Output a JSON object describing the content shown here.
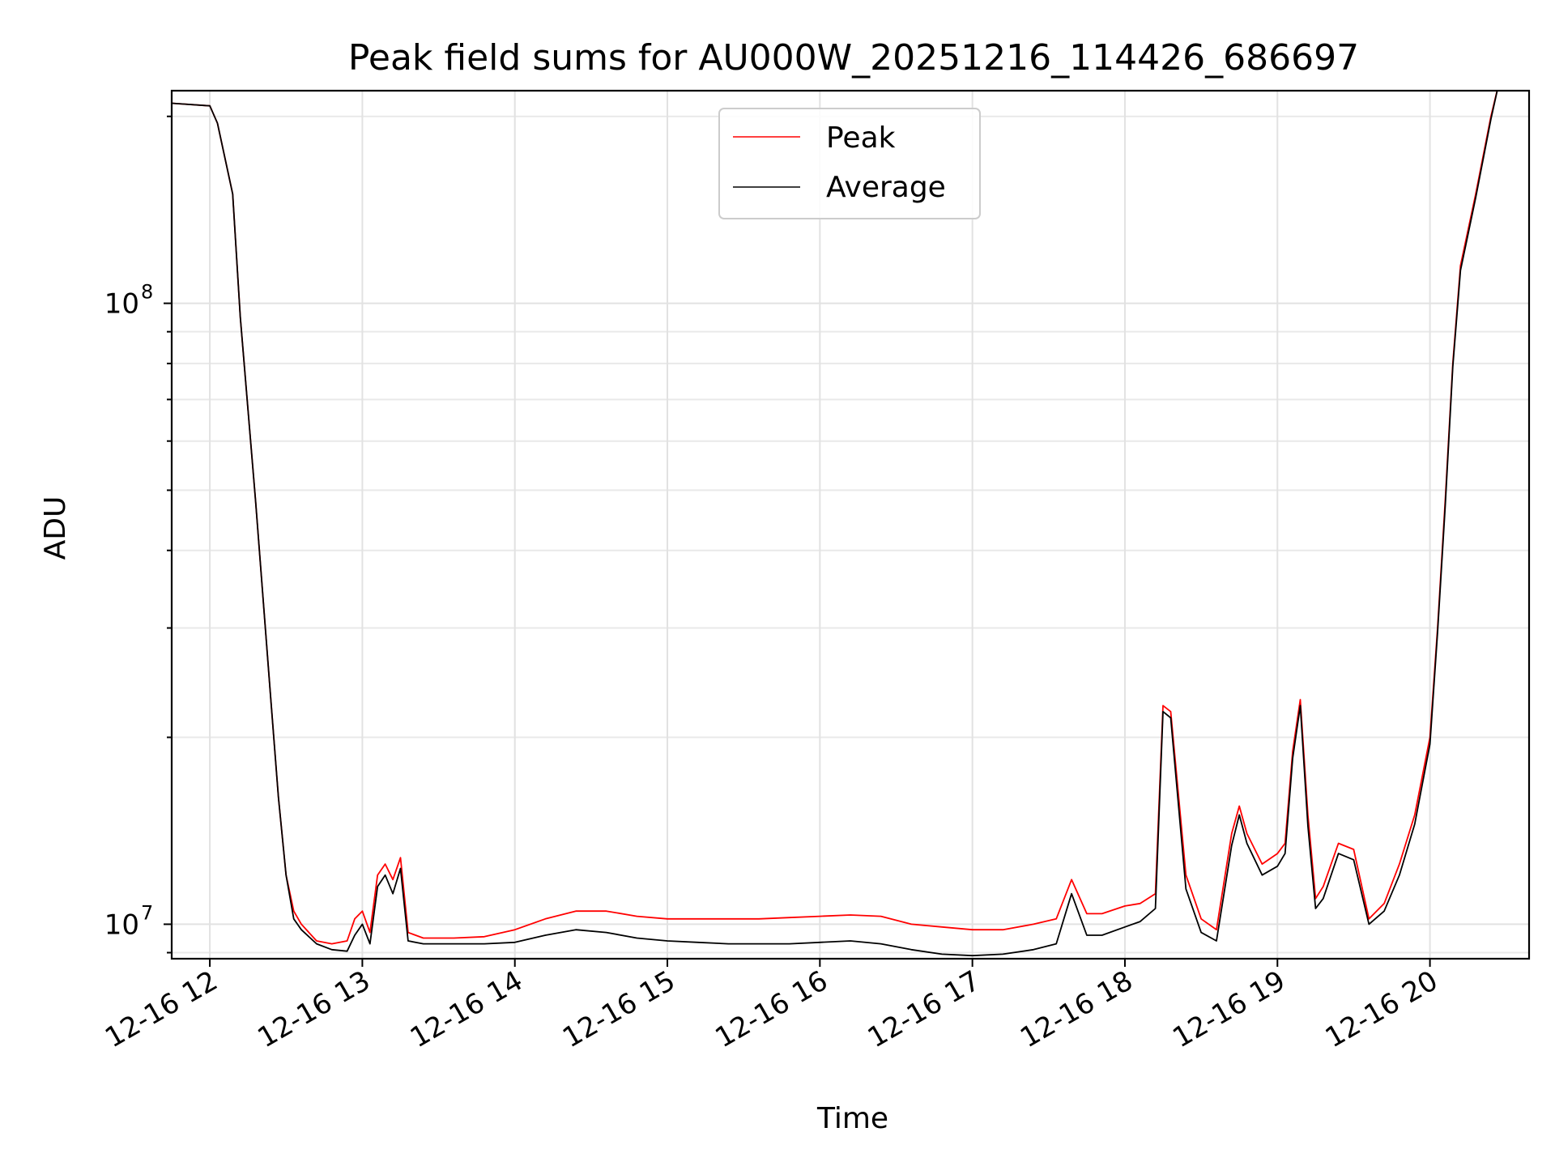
{
  "chart_data": {
    "type": "line",
    "title": "Peak field sums for AU000W_20251216_114426_686697",
    "xlabel": "Time",
    "ylabel": "ADU",
    "x_unit": "hours since 2025-12-16 00:00",
    "xlim": [
      11.75,
      20.65
    ],
    "yscale": "log",
    "ylim": [
      8800000,
      220000000
    ],
    "x_ticks": [
      {
        "value": 12,
        "label": "12-16 12"
      },
      {
        "value": 13,
        "label": "12-16 13"
      },
      {
        "value": 14,
        "label": "12-16 14"
      },
      {
        "value": 15,
        "label": "12-16 15"
      },
      {
        "value": 16,
        "label": "12-16 16"
      },
      {
        "value": 17,
        "label": "12-16 17"
      },
      {
        "value": 18,
        "label": "12-16 18"
      },
      {
        "value": 19,
        "label": "12-16 19"
      },
      {
        "value": 20,
        "label": "12-16 20"
      }
    ],
    "y_ticks": [
      {
        "value": 10000000,
        "base": "10",
        "exp": "7"
      },
      {
        "value": 100000000,
        "base": "10",
        "exp": "8"
      }
    ],
    "grid": true,
    "legend": {
      "placement": "upper-center",
      "entries": [
        "Peak",
        "Average"
      ]
    },
    "series": [
      {
        "name": "Peak",
        "color": "#ff0000",
        "x": [
          11.75,
          12.0,
          12.05,
          12.15,
          12.2,
          12.3,
          12.4,
          12.45,
          12.5,
          12.55,
          12.6,
          12.7,
          12.8,
          12.9,
          12.95,
          13.0,
          13.05,
          13.1,
          13.15,
          13.2,
          13.25,
          13.3,
          13.4,
          13.6,
          13.8,
          14.0,
          14.2,
          14.4,
          14.6,
          14.8,
          15.0,
          15.2,
          15.4,
          15.6,
          15.8,
          16.0,
          16.2,
          16.4,
          16.6,
          16.8,
          17.0,
          17.2,
          17.4,
          17.55,
          17.65,
          17.75,
          17.85,
          18.0,
          18.1,
          18.2,
          18.25,
          18.3,
          18.4,
          18.5,
          18.6,
          18.7,
          18.75,
          18.8,
          18.9,
          19.0,
          19.05,
          19.1,
          19.15,
          19.2,
          19.25,
          19.3,
          19.4,
          19.5,
          19.6,
          19.7,
          19.8,
          19.9,
          20.0,
          20.05,
          20.1,
          20.15,
          20.2,
          20.3,
          20.4,
          20.45
        ],
        "y": [
          210000000,
          208000000,
          195000000,
          150000000,
          95000000,
          48000000,
          23000000,
          16000000,
          12000000,
          10500000,
          10000000,
          9400000,
          9300000,
          9400000,
          10200000,
          10500000,
          9700000,
          12000000,
          12500000,
          11800000,
          12800000,
          9700000,
          9500000,
          9500000,
          9550000,
          9800000,
          10200000,
          10500000,
          10500000,
          10300000,
          10200000,
          10200000,
          10200000,
          10200000,
          10250000,
          10300000,
          10350000,
          10300000,
          10000000,
          9900000,
          9800000,
          9800000,
          10000000,
          10200000,
          11800000,
          10400000,
          10400000,
          10700000,
          10800000,
          11200000,
          22500000,
          22000000,
          12000000,
          10200000,
          9800000,
          14000000,
          15500000,
          14000000,
          12500000,
          13000000,
          13500000,
          19000000,
          23000000,
          15000000,
          11000000,
          11500000,
          13500000,
          13200000,
          10200000,
          10800000,
          12500000,
          15000000,
          20000000,
          30000000,
          48000000,
          80000000,
          115000000,
          150000000,
          200000000,
          225000000
        ]
      },
      {
        "name": "Average",
        "color": "#000000",
        "x": [
          11.75,
          12.0,
          12.05,
          12.15,
          12.2,
          12.3,
          12.4,
          12.45,
          12.5,
          12.55,
          12.6,
          12.7,
          12.8,
          12.9,
          12.95,
          13.0,
          13.05,
          13.1,
          13.15,
          13.2,
          13.25,
          13.3,
          13.4,
          13.6,
          13.8,
          14.0,
          14.2,
          14.4,
          14.6,
          14.8,
          15.0,
          15.2,
          15.4,
          15.6,
          15.8,
          16.0,
          16.2,
          16.4,
          16.6,
          16.8,
          17.0,
          17.2,
          17.4,
          17.55,
          17.65,
          17.75,
          17.85,
          18.0,
          18.1,
          18.2,
          18.25,
          18.3,
          18.4,
          18.5,
          18.6,
          18.7,
          18.75,
          18.8,
          18.9,
          19.0,
          19.05,
          19.1,
          19.15,
          19.2,
          19.25,
          19.3,
          19.4,
          19.5,
          19.6,
          19.7,
          19.8,
          19.9,
          20.0,
          20.05,
          20.1,
          20.15,
          20.2,
          20.3,
          20.4,
          20.45
        ],
        "y": [
          210000000,
          208000000,
          195000000,
          150000000,
          95000000,
          48000000,
          23000000,
          16000000,
          12000000,
          10200000,
          9800000,
          9300000,
          9100000,
          9050000,
          9600000,
          10000000,
          9300000,
          11500000,
          12000000,
          11200000,
          12300000,
          9400000,
          9300000,
          9300000,
          9300000,
          9350000,
          9600000,
          9800000,
          9700000,
          9500000,
          9400000,
          9350000,
          9300000,
          9300000,
          9300000,
          9350000,
          9400000,
          9300000,
          9100000,
          8950000,
          8900000,
          8950000,
          9100000,
          9300000,
          11200000,
          9600000,
          9600000,
          9900000,
          10100000,
          10600000,
          22000000,
          21500000,
          11400000,
          9700000,
          9400000,
          13400000,
          15000000,
          13500000,
          12000000,
          12400000,
          13000000,
          18500000,
          22500000,
          14400000,
          10600000,
          11000000,
          13000000,
          12700000,
          10000000,
          10500000,
          12000000,
          14500000,
          19500000,
          29500000,
          47000000,
          79000000,
          113000000,
          148000000,
          198000000,
          225000000
        ]
      }
    ]
  }
}
